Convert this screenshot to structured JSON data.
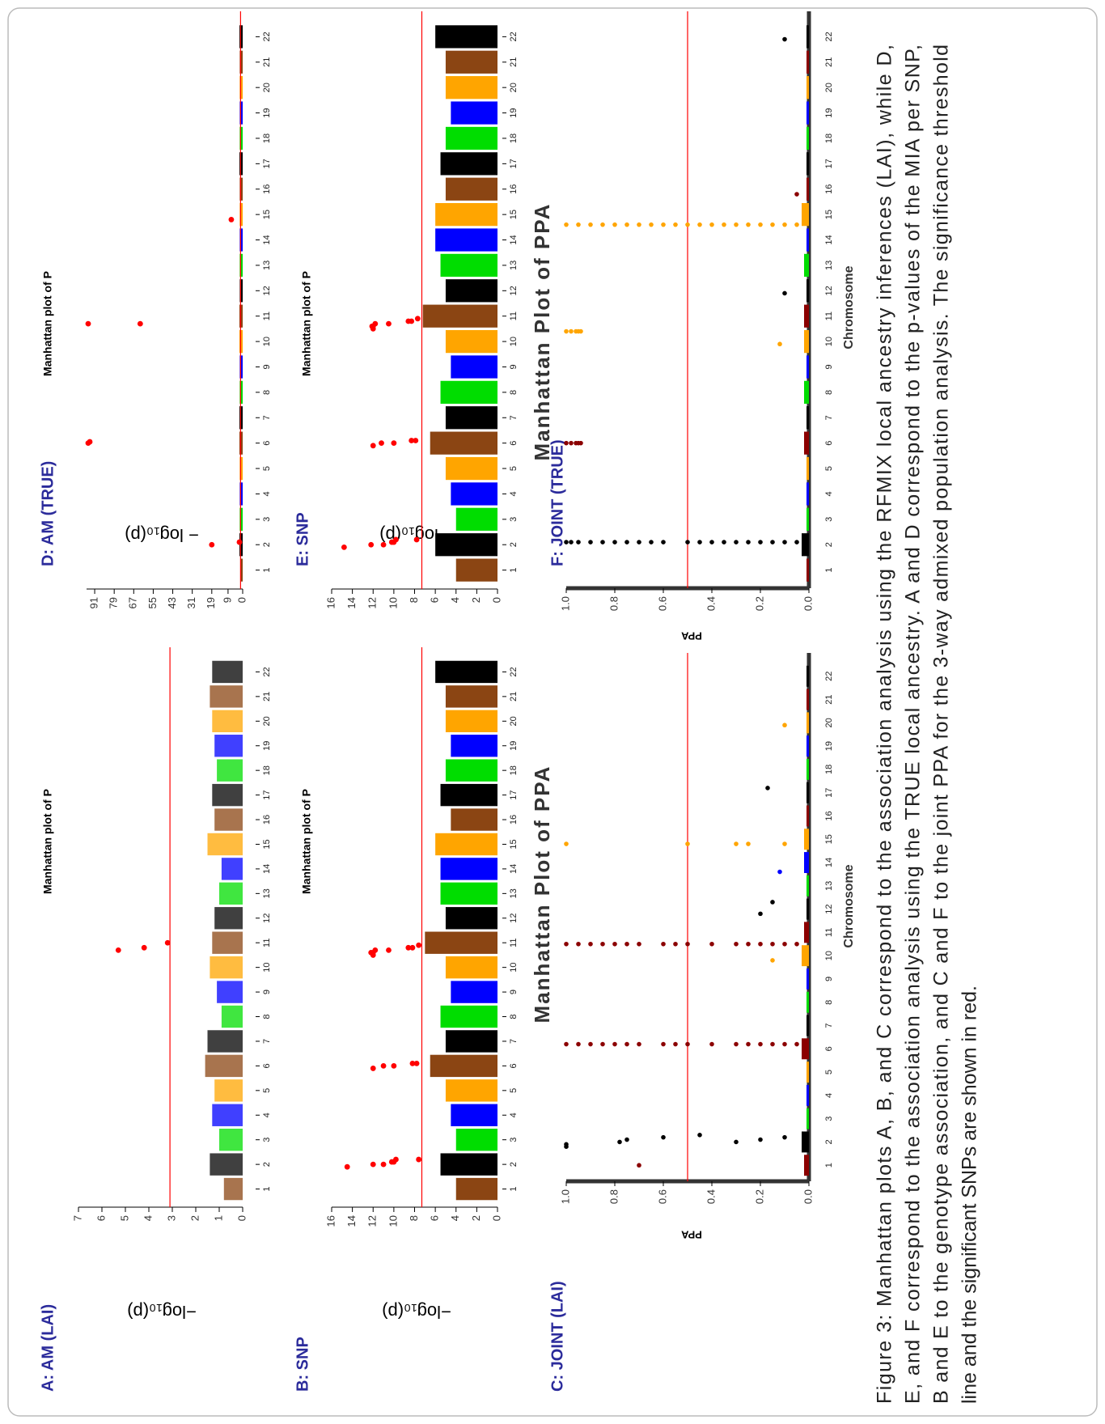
{
  "chart_data": [
    {
      "type": "manhattan",
      "panel_label": "A: AM (LAI)",
      "title": "Manhattan plot of P",
      "ylabel": "−log₁₀(p)",
      "xlim": [
        0,
        23
      ],
      "xticks": [
        1,
        2,
        3,
        4,
        5,
        6,
        7,
        8,
        9,
        10,
        11,
        12,
        13,
        14,
        15,
        16,
        17,
        18,
        19,
        20,
        21,
        22
      ],
      "ylim": [
        0,
        7
      ],
      "yticks": [
        0,
        1,
        2,
        3,
        4,
        5,
        6,
        7
      ],
      "threshold": 3.1,
      "threshold_color": "#ff0000",
      "color_cycle": [
        "#8b4513",
        "#000000",
        "#00dd00",
        "#0000ff",
        "#ffa500"
      ],
      "values": [
        0.8,
        1.4,
        1.0,
        1.3,
        1.2,
        1.6,
        1.5,
        0.9,
        1.1,
        1.4,
        1.3,
        1.2,
        1.0,
        0.9,
        1.5,
        1.2,
        1.3,
        1.1,
        1.2,
        1.3,
        1.4,
        1.3
      ],
      "outliers": {
        "x": [
          10.7,
          10.8,
          11.0
        ],
        "y": [
          5.3,
          4.2,
          3.2
        ]
      },
      "outlier_color": "#ff0000"
    },
    {
      "type": "manhattan",
      "panel_label": "B: SNP",
      "title": "Manhattan plot of P",
      "ylabel": "−log₁₀(p)",
      "xlim": [
        0,
        23
      ],
      "xticks": [
        1,
        2,
        3,
        4,
        5,
        6,
        7,
        8,
        9,
        10,
        11,
        12,
        13,
        14,
        15,
        16,
        17,
        18,
        19,
        20,
        21,
        22
      ],
      "ylim": [
        0,
        16
      ],
      "yticks": [
        0,
        2,
        4,
        6,
        8,
        10,
        12,
        14,
        16
      ],
      "threshold": 7.3,
      "threshold_color": "#ff0000",
      "color_cycle": [
        "#8b4513",
        "#000000",
        "#00dd00",
        "#0000ff",
        "#ffa500"
      ],
      "values": [
        4,
        5.5,
        4,
        4.5,
        5,
        6.5,
        5,
        5.5,
        4.5,
        5,
        7,
        5,
        5.5,
        5.5,
        6,
        4.5,
        5.5,
        5,
        4.5,
        5,
        5,
        6
      ],
      "outliers": {
        "x": [
          1.9,
          2.0,
          2.0,
          2.1,
          2.1,
          2.2,
          2.2,
          5.9,
          6.0,
          6.0,
          6.1,
          6.1,
          10.5,
          10.6,
          10.6,
          10.7,
          10.7,
          10.8,
          10.8,
          10.9
        ],
        "y": [
          14.5,
          12,
          11,
          10.2,
          10,
          9.8,
          7.6,
          12,
          11,
          10,
          8.2,
          7.8,
          12,
          12.2,
          12,
          11.8,
          10.5,
          8.6,
          8.2,
          7.6
        ]
      },
      "outlier_color": "#ff0000"
    },
    {
      "type": "manhattan",
      "panel_label": "C: JOINT (LAI)",
      "title": "Manhattan Plot of PPA",
      "ylabel": "PPA",
      "xlabel": "Chromosome",
      "xlim": [
        0,
        23
      ],
      "xticks": [
        1,
        2,
        3,
        4,
        5,
        6,
        7,
        8,
        9,
        10,
        11,
        12,
        13,
        14,
        15,
        16,
        17,
        18,
        19,
        20,
        21,
        22
      ],
      "ylim": [
        0,
        1
      ],
      "yticks": [
        {
          "value": 0,
          "label": "0.0"
        },
        0.2,
        0.4,
        0.6,
        0.8,
        {
          "value": 1,
          "label": "1.0"
        }
      ],
      "threshold": 0.5,
      "threshold_color": "#ff0000",
      "color_cycle": [
        "#8b0000",
        "#000000",
        "#00dd00",
        "#0000ff",
        "#ffa500"
      ],
      "values": [
        0.02,
        0.03,
        0.01,
        0.01,
        0.01,
        0.03,
        0.01,
        0.01,
        0.01,
        0.03,
        0.02,
        0.01,
        0.01,
        0.02,
        0.02,
        0.01,
        0.01,
        0.01,
        0.01,
        0.01,
        0.01,
        0.01
      ],
      "outliers": {
        "x": [
          1.0,
          1.8,
          1.9,
          2.0,
          2.1,
          2.2,
          2.3,
          2.0,
          2.1,
          2.2,
          6.2,
          6.2,
          6.2,
          6.2,
          6.2,
          6.2,
          6.2,
          6.2,
          6.2,
          6.2,
          6.2,
          6.2,
          6.2,
          6.2,
          6.2,
          6.2,
          6.2,
          10.5,
          10.5,
          10.5,
          10.5,
          10.5,
          10.5,
          10.5,
          10.5,
          10.5,
          10.5,
          10.5,
          10.5,
          10.5,
          10.5,
          10.5,
          10.5,
          10.5,
          11.8,
          12.3,
          13.6,
          14.8,
          14.8,
          14.8,
          14.8,
          14.8,
          17.2,
          19.9,
          9.8
        ],
        "y": [
          0.7,
          1.0,
          1.0,
          0.78,
          0.75,
          0.6,
          0.45,
          0.3,
          0.2,
          0.1,
          1.0,
          0.95,
          0.9,
          0.85,
          0.8,
          0.75,
          0.7,
          0.6,
          0.55,
          0.5,
          0.4,
          0.3,
          0.25,
          0.2,
          0.15,
          0.1,
          0.05,
          1.0,
          0.95,
          0.9,
          0.85,
          0.8,
          0.75,
          0.7,
          0.6,
          0.55,
          0.5,
          0.4,
          0.3,
          0.25,
          0.2,
          0.15,
          0.1,
          0.05,
          0.2,
          0.15,
          0.12,
          1.0,
          0.5,
          0.3,
          0.25,
          0.1,
          0.17,
          0.1,
          0.15
        ]
      }
    },
    {
      "type": "manhattan",
      "panel_label": "D: AM (TRUE)",
      "title": "Manhattan plot of P",
      "ylabel": "− log₁₀(p)",
      "xlim": [
        0,
        23
      ],
      "xticks": [
        1,
        2,
        3,
        4,
        5,
        6,
        7,
        8,
        9,
        10,
        11,
        12,
        13,
        14,
        15,
        16,
        17,
        18,
        19,
        20,
        21,
        22
      ],
      "ylim": [
        0,
        96
      ],
      "yticks": [
        0,
        9,
        19,
        31,
        43,
        55,
        67,
        79,
        91
      ],
      "threshold": 1.3,
      "threshold_color": "#ff0000",
      "color_cycle": [
        "#8b4513",
        "#000000",
        "#00dd00",
        "#0000ff",
        "#ffa500"
      ],
      "values": [
        1.5,
        2,
        1.8,
        1.8,
        1.8,
        2,
        2,
        1.8,
        1.8,
        2,
        2,
        1.8,
        1.8,
        1.8,
        1.8,
        1.8,
        2,
        1.8,
        1.8,
        1.8,
        1.8,
        2
      ],
      "outliers": {
        "x": [
          2.0,
          2.1,
          6.0,
          6.05,
          10.7,
          10.7,
          14.8
        ],
        "y": [
          19,
          2,
          95,
          94,
          95,
          63,
          7
        ]
      },
      "outlier_color": "#ff0000"
    },
    {
      "type": "manhattan",
      "panel_label": "E: SNP",
      "title": "Manhattan plot of P",
      "ylabel": "− log₁₀(p)",
      "xlim": [
        0,
        23
      ],
      "xticks": [
        1,
        2,
        3,
        4,
        5,
        6,
        7,
        8,
        9,
        10,
        11,
        12,
        13,
        14,
        15,
        16,
        17,
        18,
        19,
        20,
        21,
        22
      ],
      "ylim": [
        0,
        16
      ],
      "yticks": [
        0,
        2,
        4,
        6,
        8,
        10,
        12,
        14,
        16
      ],
      "threshold": 7.3,
      "threshold_color": "#ff0000",
      "color_cycle": [
        "#8b4513",
        "#000000",
        "#00dd00",
        "#0000ff",
        "#ffa500"
      ],
      "values": [
        4,
        6,
        4,
        4.5,
        5,
        6.5,
        5,
        5.5,
        4.5,
        5,
        7.2,
        5,
        5.5,
        6,
        6,
        5,
        5.5,
        5,
        4.5,
        5,
        5,
        6
      ],
      "outliers": {
        "x": [
          1.9,
          2.0,
          2.0,
          2.1,
          2.1,
          2.2,
          2.2,
          5.9,
          6.0,
          6.0,
          6.1,
          6.1,
          10.5,
          10.6,
          10.6,
          10.7,
          10.7,
          10.8,
          10.8,
          10.9
        ],
        "y": [
          14.8,
          12.2,
          11,
          10.2,
          10,
          9.8,
          7.8,
          12,
          11.2,
          10,
          8.3,
          7.9,
          12,
          12,
          12.1,
          11.8,
          10.5,
          8.6,
          8.3,
          7.7
        ]
      },
      "outlier_color": "#ff0000"
    },
    {
      "type": "manhattan",
      "panel_label": "F: JOINT (TRUE)",
      "title": "Manhattan Plot of PPA",
      "ylabel": "PPA",
      "xlabel": "Chromosome",
      "xlim": [
        0,
        23
      ],
      "xticks": [
        1,
        2,
        3,
        4,
        5,
        6,
        7,
        8,
        9,
        10,
        11,
        12,
        13,
        14,
        15,
        16,
        17,
        18,
        19,
        20,
        21,
        22
      ],
      "ylim": [
        0,
        1
      ],
      "yticks": [
        {
          "value": 0,
          "label": "0.0"
        },
        0.2,
        0.4,
        0.6,
        0.8,
        {
          "value": 1,
          "label": "1.0"
        }
      ],
      "threshold": 0.5,
      "threshold_color": "#ff0000",
      "color_cycle": [
        "#8b0000",
        "#000000",
        "#00dd00",
        "#0000ff",
        "#ffa500"
      ],
      "values": [
        0.01,
        0.03,
        0.01,
        0.01,
        0.01,
        0.02,
        0.01,
        0.02,
        0.01,
        0.02,
        0.02,
        0.01,
        0.02,
        0.01,
        0.03,
        0.01,
        0.01,
        0.01,
        0.01,
        0.01,
        0.01,
        0.01
      ],
      "outliers": {
        "x": [
          2.1,
          2.1,
          2.1,
          2.1,
          2.1,
          2.1,
          2.1,
          2.1,
          2.1,
          2.1,
          2.1,
          2.1,
          2.1,
          2.1,
          2.1,
          2.1,
          2.1,
          2.1,
          2.1,
          2.1,
          6.0,
          6.0,
          6.0,
          6.0,
          6.0,
          10.4,
          10.4,
          10.4,
          10.4,
          10.4,
          14.6,
          14.6,
          14.6,
          14.6,
          14.6,
          14.6,
          14.6,
          14.6,
          14.6,
          14.6,
          14.6,
          14.6,
          14.6,
          14.6,
          14.6,
          14.6,
          14.6,
          14.6,
          14.6,
          14.6,
          9.9,
          11.9,
          21.9,
          15.8
        ],
        "y": [
          1.0,
          0.98,
          0.95,
          0.9,
          0.85,
          0.8,
          0.75,
          0.7,
          0.65,
          0.6,
          0.5,
          0.45,
          0.4,
          0.35,
          0.3,
          0.25,
          0.2,
          0.15,
          0.1,
          0.05,
          1.0,
          0.98,
          0.96,
          0.95,
          0.94,
          1.0,
          0.98,
          0.96,
          0.95,
          0.94,
          1.0,
          0.95,
          0.9,
          0.85,
          0.8,
          0.75,
          0.7,
          0.65,
          0.6,
          0.55,
          0.5,
          0.45,
          0.4,
          0.35,
          0.3,
          0.25,
          0.2,
          0.15,
          0.1,
          0.05,
          0.12,
          0.1,
          0.1,
          0.05
        ]
      }
    }
  ],
  "caption": {
    "lines": [
      "Figure 3: Manhattan plots A, B, and C correspond to the association analysis using the RFMIX local ancestry inferences (LAI), while D,",
      "E, and F correspond to the association analysis using the TRUE local ancestry. A and D correspond to the p-values of the MIA per SNP,",
      "B and E to the genotype association, and C and F to the joint PPA for the 3-way admixed population analysis. The significance threshold",
      "line and the significant SNPs are shown in red."
    ]
  }
}
